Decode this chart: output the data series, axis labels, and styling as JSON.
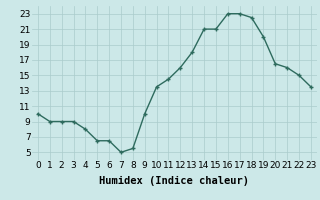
{
  "x": [
    0,
    1,
    2,
    3,
    4,
    5,
    6,
    7,
    8,
    9,
    10,
    11,
    12,
    13,
    14,
    15,
    16,
    17,
    18,
    19,
    20,
    21,
    22,
    23
  ],
  "y": [
    10,
    9,
    9,
    9,
    8,
    6.5,
    6.5,
    5,
    5.5,
    10,
    13.5,
    14.5,
    16,
    18,
    21,
    21,
    23,
    23,
    22.5,
    20,
    16.5,
    16,
    15,
    13.5
  ],
  "xlabel": "Humidex (Indice chaleur)",
  "ylim": [
    4,
    24
  ],
  "xlim": [
    -0.5,
    23.5
  ],
  "yticks": [
    5,
    7,
    9,
    11,
    13,
    15,
    17,
    19,
    21,
    23
  ],
  "xticks": [
    0,
    1,
    2,
    3,
    4,
    5,
    6,
    7,
    8,
    9,
    10,
    11,
    12,
    13,
    14,
    15,
    16,
    17,
    18,
    19,
    20,
    21,
    22,
    23
  ],
  "xtick_labels": [
    "0",
    "1",
    "2",
    "3",
    "4",
    "5",
    "6",
    "7",
    "8",
    "9",
    "10",
    "11",
    "12",
    "13",
    "14",
    "15",
    "16",
    "17",
    "18",
    "19",
    "20",
    "21",
    "22",
    "23"
  ],
  "line_color": "#2e6b5e",
  "marker": "+",
  "background_color": "#cce8e8",
  "grid_color": "#aacccc",
  "xlabel_fontsize": 7.5,
  "tick_fontsize": 6.5
}
